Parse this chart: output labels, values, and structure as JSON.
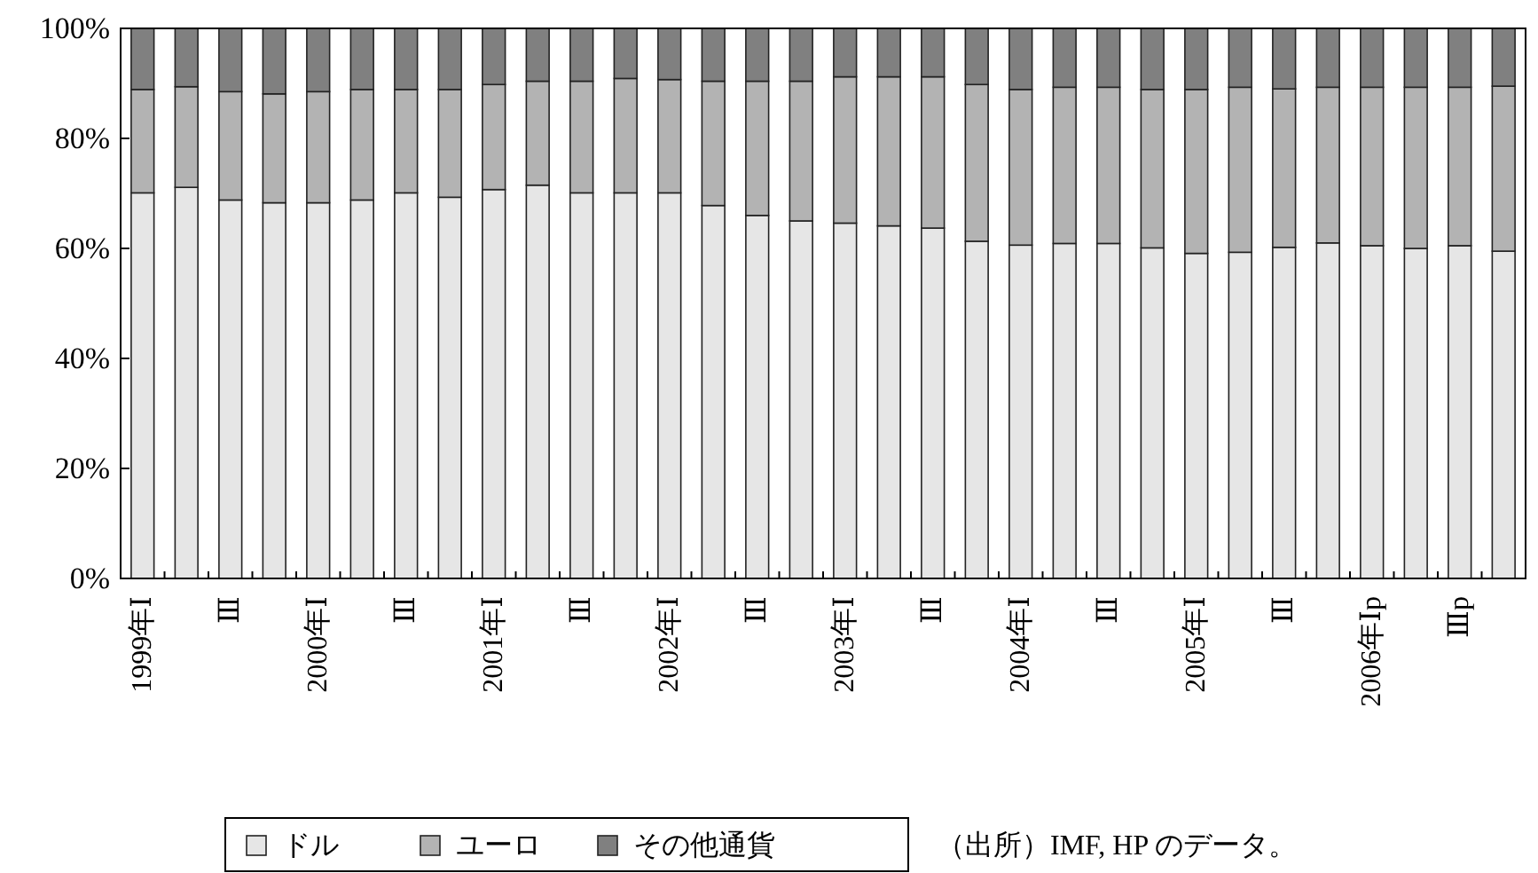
{
  "chart_data": {
    "type": "bar",
    "stacked": true,
    "categories": [
      "1999年Ⅰ",
      null,
      "Ⅲ",
      null,
      "2000年Ⅰ",
      null,
      "Ⅲ",
      null,
      "2001年Ⅰ",
      null,
      "Ⅲ",
      null,
      "2002年Ⅰ",
      null,
      "Ⅲ",
      null,
      "2003年Ⅰ",
      null,
      "Ⅲ",
      null,
      "2004年Ⅰ",
      null,
      "Ⅲ",
      null,
      "2005年Ⅰ",
      null,
      "Ⅲ",
      null,
      "2006年Ⅰp",
      null,
      "Ⅲp",
      null
    ],
    "series": [
      {
        "name": "ドル",
        "color": "#e6e6e6",
        "values": [
          70.1,
          71.1,
          68.8,
          68.3,
          68.3,
          68.8,
          70.1,
          69.3,
          70.7,
          71.5,
          70.1,
          70.1,
          70.1,
          67.8,
          66.0,
          65.0,
          64.6,
          64.1,
          63.7,
          61.3,
          60.6,
          60.9,
          60.9,
          60.1,
          59.1,
          59.3,
          60.2,
          61.0,
          60.5,
          60.0,
          60.5,
          59.5
        ]
      },
      {
        "name": "ユーロ",
        "color": "#b3b3b3",
        "values": [
          18.8,
          18.3,
          19.7,
          19.8,
          20.2,
          20.1,
          18.8,
          19.6,
          19.1,
          18.9,
          20.3,
          20.8,
          20.6,
          22.6,
          24.4,
          25.4,
          26.6,
          27.1,
          27.5,
          28.5,
          28.3,
          28.4,
          28.4,
          28.8,
          29.8,
          30.0,
          28.8,
          28.3,
          28.8,
          29.3,
          28.8,
          30.0
        ]
      },
      {
        "name": "その他通貨",
        "color": "#808080",
        "values": [
          11.1,
          10.6,
          11.5,
          11.9,
          11.5,
          11.1,
          11.1,
          11.1,
          10.2,
          9.6,
          9.6,
          9.1,
          9.3,
          9.6,
          9.6,
          9.6,
          8.8,
          8.8,
          8.8,
          10.2,
          11.1,
          10.7,
          10.7,
          11.1,
          11.1,
          10.7,
          11.0,
          10.7,
          10.7,
          10.7,
          10.7,
          10.5
        ]
      }
    ],
    "ylim": [
      0,
      100
    ],
    "yticks": [
      {
        "value": 0,
        "label": "0%"
      },
      {
        "value": 20,
        "label": "20%"
      },
      {
        "value": 40,
        "label": "40%"
      },
      {
        "value": 60,
        "label": "60%"
      },
      {
        "value": 80,
        "label": "80%"
      },
      {
        "value": 100,
        "label": "100%"
      }
    ],
    "legend": "bottom",
    "annotations": [
      "（出所）IMF, HP のデータ。"
    ]
  }
}
